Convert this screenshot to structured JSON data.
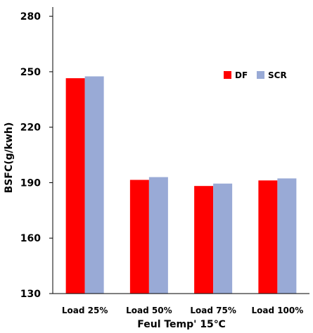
{
  "chart_data": {
    "type": "bar",
    "title": "",
    "xlabel": "Feul Temp' 15℃",
    "ylabel": "BSFC(g/kwh)",
    "ylim": [
      130,
      285
    ],
    "yticks": [
      "130",
      "160",
      "190",
      "220",
      "250",
      "280"
    ],
    "categories": [
      "Load 25%",
      "Load 50%",
      "Load 75%",
      "Load 100%"
    ],
    "series": [
      {
        "name": "DF",
        "color": "#ff0000",
        "values": [
          246.5,
          191.5,
          188.2,
          191.2
        ]
      },
      {
        "name": "SCR",
        "color": "#99aad6",
        "values": [
          247.5,
          193.0,
          189.5,
          192.3
        ]
      }
    ],
    "grid": false,
    "legend_position": "top-right"
  }
}
